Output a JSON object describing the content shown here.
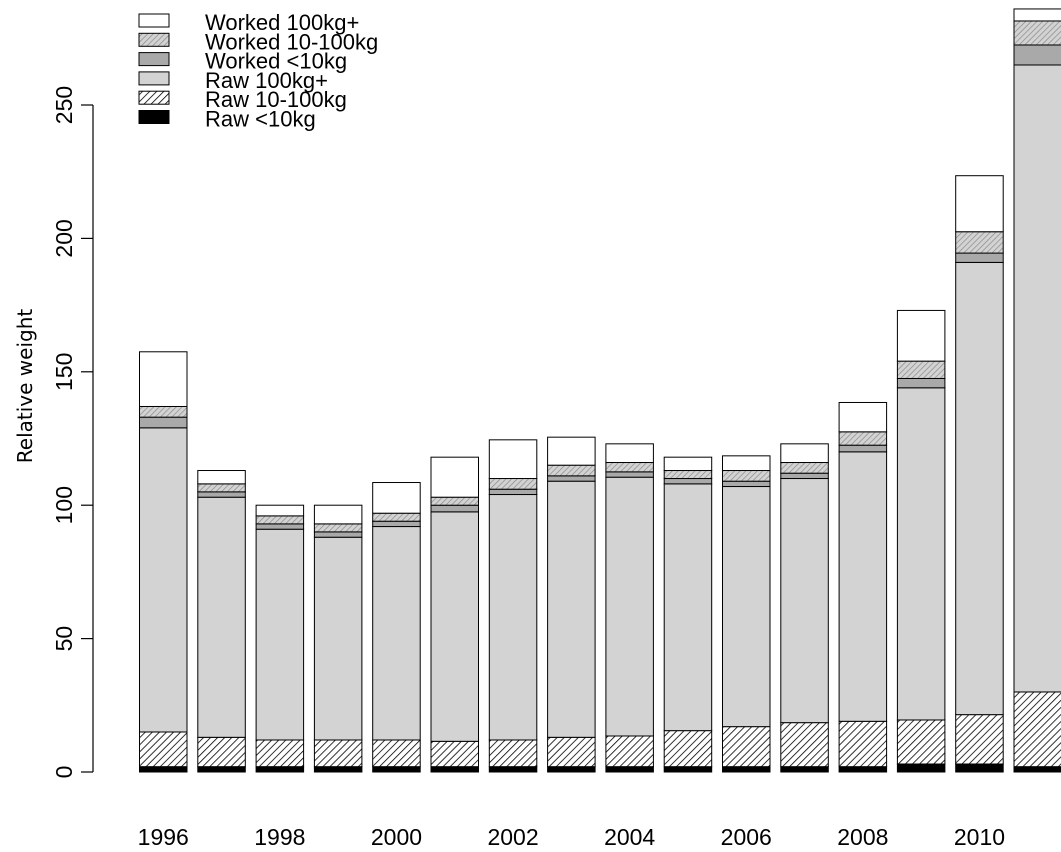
{
  "chart_data": {
    "type": "bar",
    "stacked": true,
    "title": "",
    "xlabel": "",
    "ylabel": "Relative weight",
    "ylim": [
      0,
      290
    ],
    "yticks": [
      "0",
      "50",
      "100",
      "150",
      "200",
      "250"
    ],
    "categories": [
      "1996",
      "1997",
      "1998",
      "1999",
      "2000",
      "2001",
      "2002",
      "2003",
      "2004",
      "2005",
      "2006",
      "2007",
      "2008",
      "2009",
      "2010",
      "2011"
    ],
    "xtick_labels": [
      "1996",
      "",
      "1998",
      "",
      "2000",
      "",
      "2002",
      "",
      "2004",
      "",
      "2006",
      "",
      "2008",
      "",
      "2010",
      ""
    ],
    "legend_position": "top-left",
    "series": [
      {
        "name": "Raw <10kg",
        "fill": "#000000",
        "pattern": "none",
        "values": [
          2,
          2,
          2,
          2,
          2,
          2,
          2,
          2,
          2,
          2,
          2,
          2,
          2,
          3,
          3,
          2
        ]
      },
      {
        "name": "Raw 10-100kg",
        "fill": "#ffffff",
        "pattern": "hatch",
        "values": [
          13,
          11,
          10,
          10,
          10,
          9.5,
          10,
          11,
          11.5,
          13.5,
          15,
          16.5,
          17,
          16.5,
          18.5,
          28
        ]
      },
      {
        "name": "Raw 100kg+",
        "fill": "#d3d3d3",
        "pattern": "none",
        "values": [
          114,
          90,
          79,
          76,
          80,
          86,
          92,
          96,
          97,
          92.5,
          90,
          91.5,
          101,
          124.5,
          169.5,
          235
        ]
      },
      {
        "name": "Worked <10kg",
        "fill": "#a9a9a9",
        "pattern": "none",
        "values": [
          4,
          2,
          2,
          2,
          2,
          2.5,
          2,
          2,
          2,
          2,
          2,
          2,
          2.5,
          3.5,
          3.5,
          7.5
        ]
      },
      {
        "name": "Worked 10-100kg",
        "fill": "#d3d3d3",
        "pattern": "dense",
        "values": [
          4,
          3,
          3,
          3,
          3,
          3,
          4,
          4,
          3.5,
          3,
          4,
          4,
          5,
          6.5,
          8,
          9
        ]
      },
      {
        "name": "Worked 100kg+",
        "fill": "#ffffff",
        "pattern": "none",
        "values": [
          20.5,
          5,
          4,
          7,
          11.5,
          15,
          14.5,
          10.5,
          7,
          5,
          5.5,
          7,
          11,
          19,
          21,
          4.5
        ]
      }
    ],
    "legend_order": [
      "Worked 100kg+",
      "Worked 10-100kg",
      "Worked <10kg",
      "Raw 100kg+",
      "Raw 10-100kg",
      "Raw <10kg"
    ]
  }
}
